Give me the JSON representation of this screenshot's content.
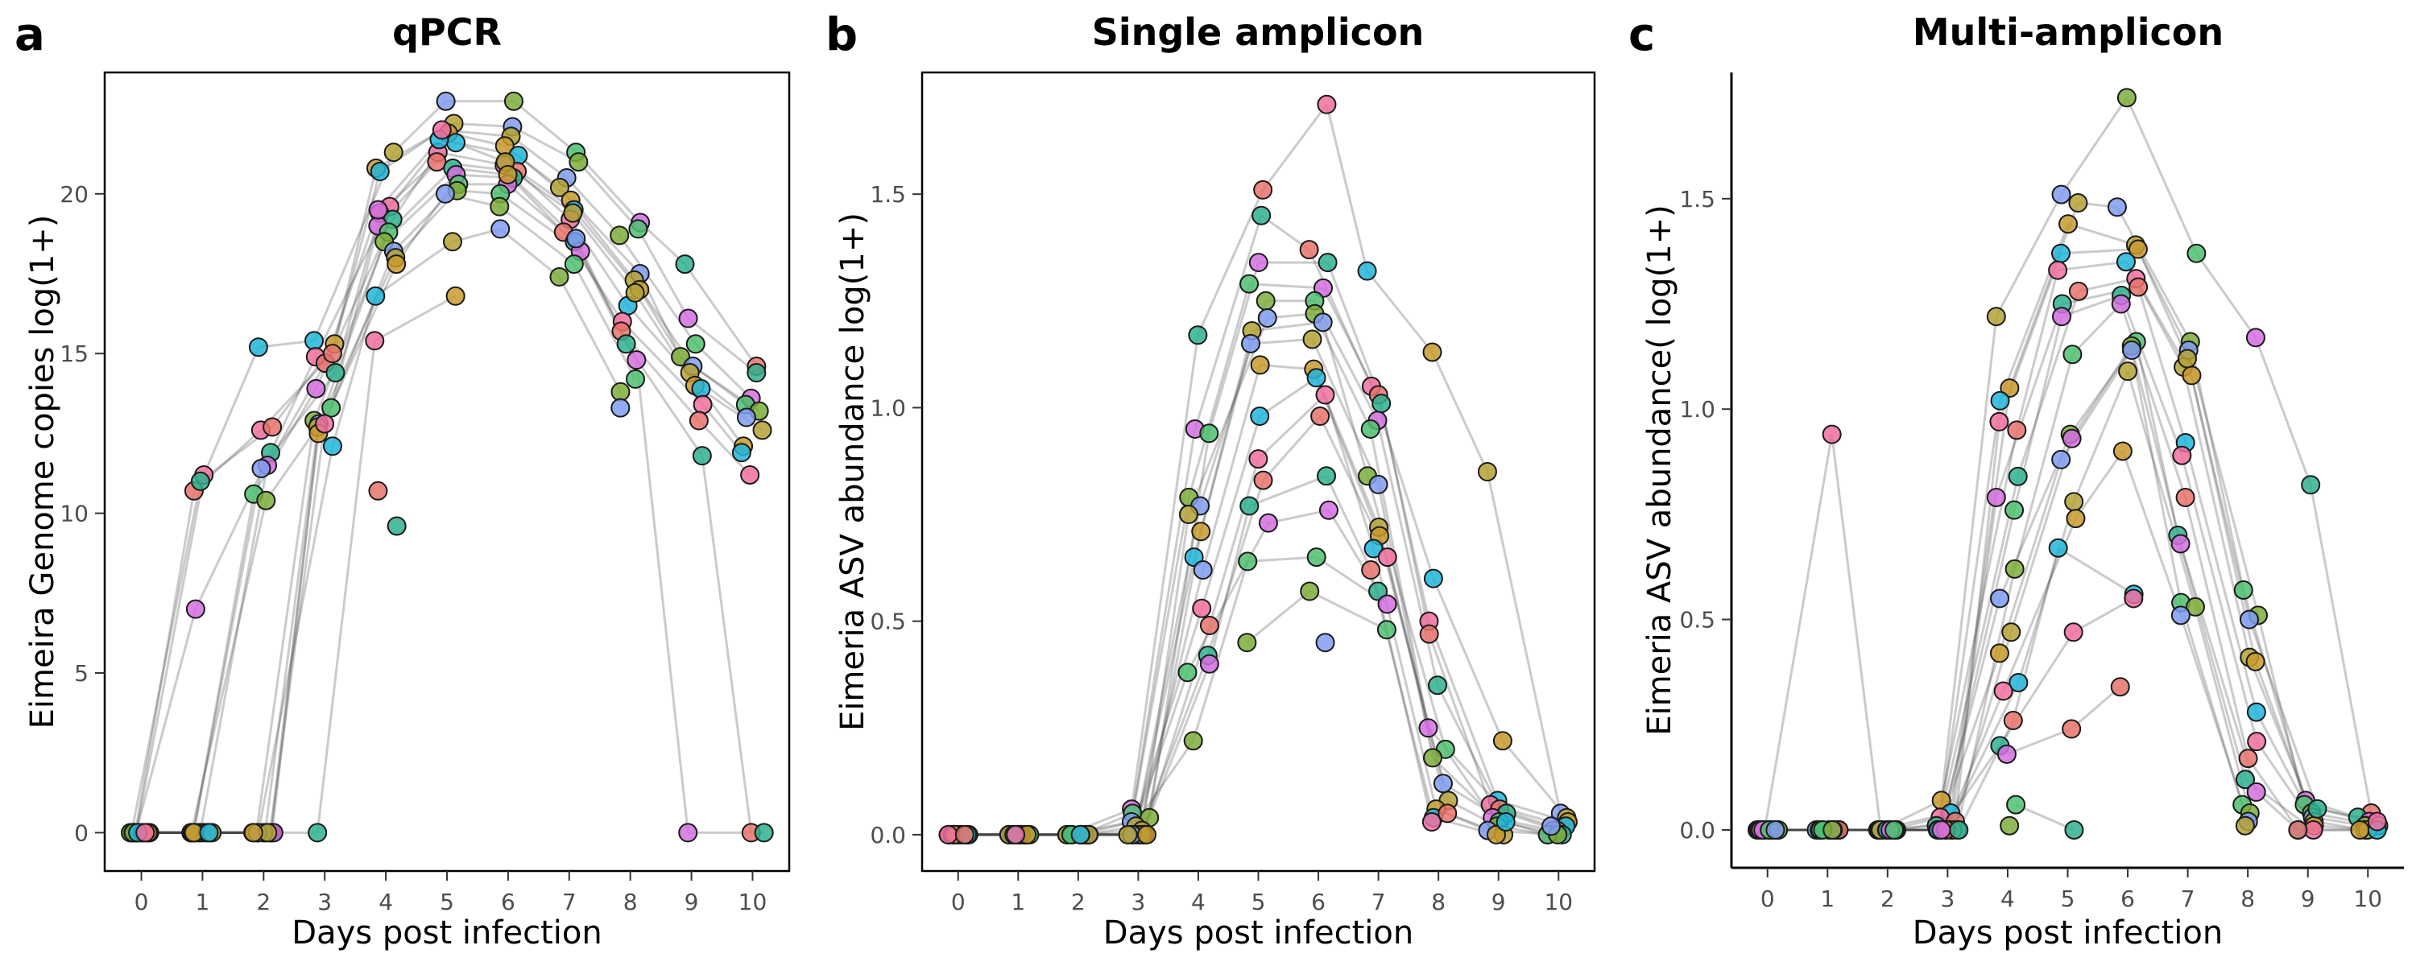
{
  "chart_data": [
    {
      "type": "scatter",
      "panel_label": "a",
      "title": "qPCR",
      "xlabel": "Days post infection",
      "ylabel": "Eimeira Genome copies log(1+)",
      "xlim": [
        -0.6,
        10.6
      ],
      "ylim": [
        -1.2,
        23.8
      ],
      "xticks": [
        0,
        1,
        2,
        3,
        4,
        5,
        6,
        7,
        8,
        9,
        10
      ],
      "yticks": [
        0,
        5,
        10,
        15,
        20
      ],
      "ytick_labels": [
        "0",
        "5",
        "10",
        "15",
        "20"
      ],
      "boxed": true,
      "connected_lines": true,
      "legend": "none",
      "points": {
        "0": [
          0,
          0,
          0,
          0,
          0,
          0,
          0,
          0,
          0,
          0,
          0,
          0,
          0,
          0,
          0,
          0,
          0,
          0,
          0,
          0
        ],
        "1": [
          11.2,
          10.7,
          11.0,
          7.0,
          0,
          0,
          0,
          0,
          0,
          0,
          0,
          0,
          0,
          0,
          0,
          0,
          0,
          0,
          0,
          0
        ],
        "2": [
          15.2,
          12.6,
          12.7,
          11.9,
          11.5,
          10.6,
          10.4,
          11.4,
          0,
          0,
          0,
          0,
          0,
          0,
          0,
          0,
          0,
          0,
          0,
          0
        ],
        "3": [
          15.3,
          15.4,
          14.9,
          14.7,
          14.4,
          13.9,
          13.3,
          12.9,
          12.8,
          12.7,
          12.5,
          12.1,
          12.8,
          15.0,
          0
        ],
        "4": [
          21.3,
          20.8,
          20.7,
          19.6,
          19.4,
          19.2,
          19.0,
          18.8,
          18.5,
          18.2,
          18.0,
          17.8,
          16.8,
          15.4,
          10.7,
          9.6,
          19.5
        ],
        "5": [
          22.9,
          22.2,
          21.9,
          21.6,
          21.3,
          21.0,
          20.8,
          20.6,
          20.3,
          20.1,
          20.0,
          18.5,
          16.8,
          21.7,
          22.0
        ],
        "6": [
          22.9,
          22.1,
          21.8,
          21.5,
          21.2,
          20.9,
          20.7,
          20.5,
          20.3,
          20.0,
          19.6,
          18.9,
          21.0,
          20.6
        ],
        "7": [
          21.3,
          21.0,
          20.5,
          20.2,
          19.8,
          19.5,
          19.2,
          18.8,
          18.5,
          18.2,
          17.8,
          17.4,
          18.6,
          19.4
        ],
        "8": [
          19.1,
          18.9,
          18.7,
          17.5,
          17.3,
          17.0,
          16.5,
          16.0,
          15.7,
          15.3,
          14.8,
          14.2,
          13.8,
          13.3,
          16.9
        ],
        "9": [
          17.8,
          16.1,
          15.3,
          14.9,
          14.6,
          14.4,
          14.0,
          13.9,
          13.4,
          12.9,
          11.8,
          0
        ],
        "10": [
          14.6,
          14.4,
          13.6,
          13.4,
          13.2,
          13.0,
          12.6,
          12.1,
          11.9,
          11.2,
          0,
          0
        ]
      }
    },
    {
      "type": "scatter",
      "panel_label": "b",
      "title": "Single amplicon",
      "xlabel": "Days post infection",
      "ylabel": "Eimeria ASV abundance log(1+)",
      "xlim": [
        -0.6,
        10.6
      ],
      "ylim": [
        -0.085,
        1.785
      ],
      "xticks": [
        0,
        1,
        2,
        3,
        4,
        5,
        6,
        7,
        8,
        9,
        10
      ],
      "yticks": [
        0,
        0.5,
        1.0,
        1.5
      ],
      "ytick_labels": [
        "0.0",
        "0.5",
        "1.0",
        "1.5"
      ],
      "boxed": true,
      "connected_lines": true,
      "legend": "none",
      "points": {
        "0": [
          0,
          0,
          0,
          0,
          0,
          0,
          0,
          0,
          0,
          0,
          0,
          0,
          0,
          0,
          0,
          0
        ],
        "1": [
          0,
          0,
          0,
          0,
          0,
          0,
          0,
          0,
          0,
          0,
          0,
          0,
          0,
          0,
          0,
          0
        ],
        "2": [
          0,
          0,
          0,
          0,
          0,
          0,
          0,
          0,
          0,
          0,
          0,
          0,
          0,
          0,
          0,
          0
        ],
        "3": [
          0.06,
          0.05,
          0.04,
          0.03,
          0.02,
          0.01,
          0,
          0,
          0,
          0,
          0,
          0,
          0,
          0,
          0,
          0
        ],
        "4": [
          1.17,
          0.95,
          0.94,
          0.79,
          0.77,
          0.75,
          0.71,
          0.65,
          0.53,
          0.49,
          0.42,
          0.4,
          0.38,
          0.22,
          0.62
        ],
        "5": [
          1.51,
          1.45,
          1.34,
          1.29,
          1.25,
          1.21,
          1.18,
          1.1,
          0.98,
          0.88,
          0.83,
          0.77,
          0.73,
          0.64,
          0.45,
          1.15
        ],
        "6": [
          1.71,
          1.37,
          1.34,
          1.28,
          1.25,
          1.22,
          1.2,
          1.16,
          1.09,
          1.07,
          1.03,
          0.98,
          0.84,
          0.76,
          0.65,
          0.57,
          0.45
        ],
        "7": [
          1.32,
          1.05,
          1.03,
          1.01,
          0.97,
          0.95,
          0.84,
          0.82,
          0.72,
          0.7,
          0.67,
          0.65,
          0.62,
          0.57,
          0.54,
          0.48
        ],
        "8": [
          1.13,
          0.6,
          0.5,
          0.47,
          0.35,
          0.25,
          0.2,
          0.18,
          0.12,
          0.08,
          0.06,
          0.04,
          0.03,
          0.05
        ],
        "9": [
          0.85,
          0.22,
          0.08,
          0.07,
          0.06,
          0.05,
          0.04,
          0.03,
          0.02,
          0.01,
          0,
          0,
          0.03
        ],
        "10": [
          0.05,
          0.04,
          0.03,
          0.02,
          0.01,
          0.01,
          0,
          0,
          0,
          0,
          0.02
        ]
      }
    },
    {
      "type": "scatter",
      "panel_label": "c",
      "title": "Multi-amplicon",
      "xlabel": "Days post infection",
      "ylabel": "Eimeria ASV abundance( log(1+)",
      "xlim": [
        -0.6,
        10.6
      ],
      "ylim": [
        -0.09,
        1.8
      ],
      "xticks": [
        0,
        1,
        2,
        3,
        4,
        5,
        6,
        7,
        8,
        9,
        10
      ],
      "yticks": [
        0,
        0.5,
        1.0,
        1.5
      ],
      "ytick_labels": [
        "0.0",
        "0.5",
        "1.0",
        "1.5"
      ],
      "boxed": false,
      "connected_lines": true,
      "legend": "none",
      "points": {
        "0": [
          0,
          0,
          0,
          0,
          0,
          0,
          0,
          0,
          0,
          0,
          0,
          0,
          0,
          0,
          0,
          0
        ],
        "1": [
          0.94,
          0,
          0,
          0,
          0,
          0,
          0,
          0,
          0,
          0,
          0,
          0,
          0,
          0,
          0,
          0
        ],
        "2": [
          0,
          0,
          0,
          0,
          0,
          0,
          0,
          0,
          0,
          0,
          0,
          0,
          0,
          0,
          0,
          0
        ],
        "3": [
          0.07,
          0.04,
          0.03,
          0.02,
          0.01,
          0,
          0,
          0,
          0,
          0,
          0,
          0,
          0,
          0,
          0,
          0
        ],
        "4": [
          1.22,
          1.05,
          1.02,
          0.97,
          0.95,
          0.84,
          0.79,
          0.76,
          0.62,
          0.55,
          0.47,
          0.42,
          0.35,
          0.33,
          0.26,
          0.2,
          0.18,
          0.06,
          0.01
        ],
        "5": [
          1.51,
          1.49,
          1.44,
          1.37,
          1.33,
          1.28,
          1.25,
          1.22,
          1.13,
          0.94,
          0.88,
          0.78,
          0.74,
          0.67,
          0.47,
          0.24,
          0,
          0.93
        ],
        "6": [
          1.74,
          1.48,
          1.39,
          1.38,
          1.35,
          1.31,
          1.29,
          1.27,
          1.25,
          1.16,
          1.15,
          1.14,
          1.09,
          0.9,
          0.56,
          0.55,
          0.34
        ],
        "7": [
          1.37,
          1.16,
          1.14,
          1.1,
          1.08,
          0.92,
          0.89,
          0.79,
          0.7,
          0.68,
          0.54,
          0.53,
          0.51,
          1.12
        ],
        "8": [
          1.17,
          0.57,
          0.51,
          0.5,
          0.41,
          0.4,
          0.28,
          0.21,
          0.17,
          0.12,
          0.09,
          0.06,
          0.04,
          0.02,
          0.01
        ],
        "9": [
          0.82,
          0.07,
          0.06,
          0.04,
          0.03,
          0.02,
          0.01,
          0,
          0,
          0,
          0.05
        ],
        "10": [
          0.04,
          0.03,
          0.02,
          0.01,
          0.01,
          0,
          0,
          0,
          0,
          0.02
        ]
      }
    }
  ],
  "colors": {
    "palette": [
      "#e8736b",
      "#c99a2e",
      "#7cad3a",
      "#2fb08f",
      "#21b5d9",
      "#7f9cf0",
      "#d46ee0",
      "#f06fa0",
      "#b5a236",
      "#4dbf70"
    ],
    "line": "#444444",
    "background": "#ffffff"
  }
}
